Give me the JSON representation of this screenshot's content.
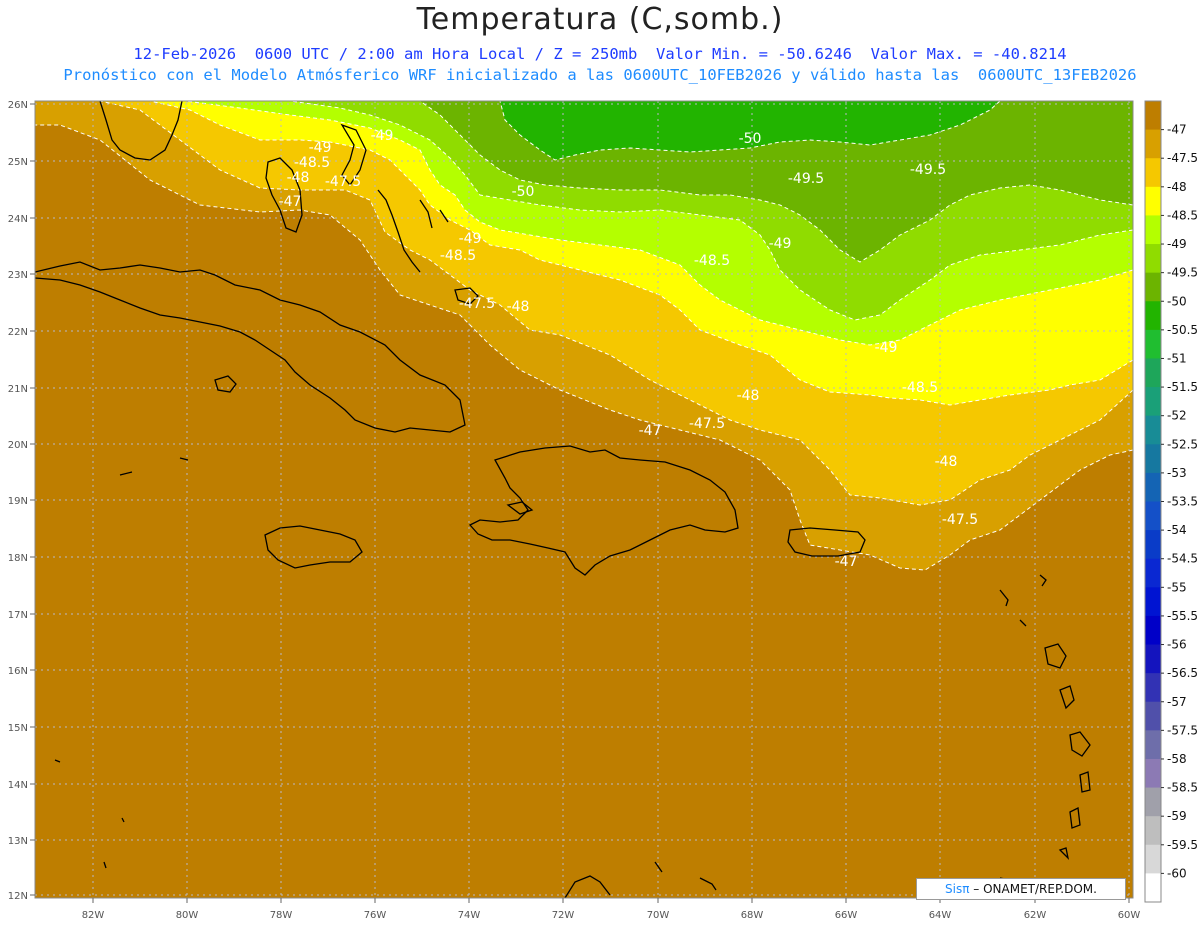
{
  "title": "Temperatura (C,somb.)",
  "subtitle_line1": "12-Feb-2026  0600 UTC / 2:00 am Hora Local / Z = 250mb  Valor Min. = -50.6246  Valor Max. = -40.8214",
  "subtitle_line2": "Pronóstico con el Modelo Atmósferico WRF inicializado a las 0600UTC_10FEB2026 y válido hasta las  0600UTC_13FEB2026",
  "credit": {
    "logo": "Sisπ",
    "text": "– ONAMET/REP.DOM."
  },
  "axes": {
    "lon_ticks": [
      "82W",
      "80W",
      "78W",
      "76W",
      "74W",
      "72W",
      "70W",
      "68W",
      "66W",
      "64W",
      "62W",
      "60W"
    ],
    "lat_ticks": [
      "26N",
      "25N",
      "24N",
      "23N",
      "22N",
      "21N",
      "20N",
      "19N",
      "18N",
      "17N",
      "16N",
      "15N",
      "14N",
      "13N",
      "12N"
    ]
  },
  "colorbar": {
    "labels": [
      "-47",
      "-47.5",
      "-48",
      "-48.5",
      "-49",
      "-49.5",
      "-50",
      "-50.5",
      "-51",
      "-51.5",
      "-52",
      "-52.5",
      "-53",
      "-53.5",
      "-54",
      "-54.5",
      "-55",
      "-55.5",
      "-56",
      "-56.5",
      "-57",
      "-57.5",
      "-58",
      "-58.5",
      "-59",
      "-59.5",
      "-60"
    ],
    "colors": [
      "#be7e00",
      "#d8a000",
      "#f5c800",
      "#ffff00",
      "#b4ff00",
      "#90dc00",
      "#6cb400",
      "#22b400",
      "#20be30",
      "#1ea65a",
      "#1aa078",
      "#188c96",
      "#1678a0",
      "#1464b4",
      "#1450c8",
      "#0a3cc8",
      "#0a28d2",
      "#0014d2",
      "#0000c8",
      "#1414be",
      "#3232b4",
      "#5050aa",
      "#6e6eaa",
      "#8c7ab4",
      "#a0a0aa",
      "#bebebe",
      "#d8d8d8",
      "#ffffff"
    ]
  },
  "contour_labels": [
    "-50",
    "-49",
    "-49.5",
    "-49.5",
    "-50",
    "-49",
    "-48.5",
    "-49",
    "-48.5",
    "-47.5",
    "-48",
    "-47",
    "-47.5",
    "-48",
    "-48.5",
    "-49",
    "-48.5",
    "-48",
    "-47.5",
    "-47",
    "-48",
    "-47.5",
    "-47",
    "-49"
  ]
}
